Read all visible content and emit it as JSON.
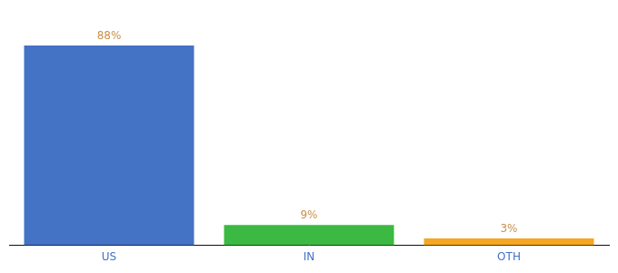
{
  "chart_data": {
    "type": "bar",
    "categories": [
      "US",
      "IN",
      "OTH"
    ],
    "values": [
      88,
      9,
      3
    ],
    "value_labels": [
      "88%",
      "9%",
      "3%"
    ],
    "data_labels": true,
    "colors": [
      "#4472c4",
      "#3cb942",
      "#f5a623"
    ],
    "ylim": [
      0,
      100
    ],
    "grid": false,
    "tick_labels": "x"
  }
}
